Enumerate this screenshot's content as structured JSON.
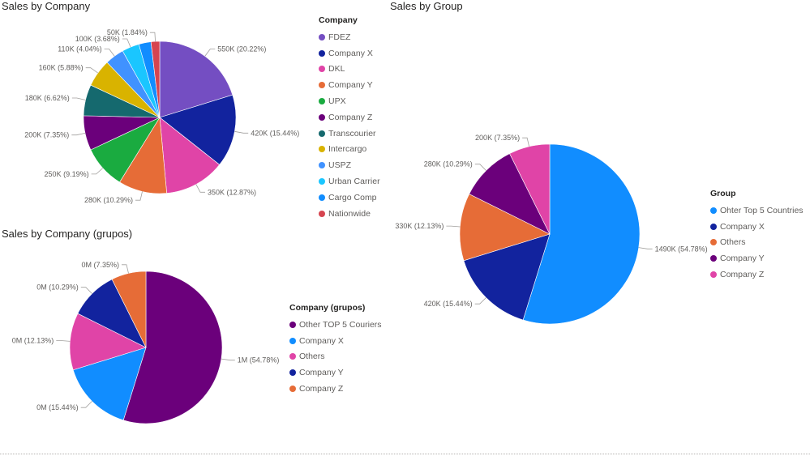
{
  "chart_data": [
    {
      "id": "company",
      "type": "pie",
      "title": "Sales by Company",
      "legend_title": "Company",
      "legend_position": "right",
      "slices": [
        {
          "name": "FDEZ",
          "label": "550K (20.22%)",
          "percent": 20.22,
          "color": "#744EC2"
        },
        {
          "name": "Company X",
          "label": "420K (15.44%)",
          "percent": 15.44,
          "color": "#12239E"
        },
        {
          "name": "DKL",
          "label": "350K (12.87%)",
          "percent": 12.87,
          "color": "#E044A7"
        },
        {
          "name": "Company Y",
          "label": "280K (10.29%)",
          "percent": 10.29,
          "color": "#E66C37"
        },
        {
          "name": "UPX",
          "label": "250K (9.19%)",
          "percent": 9.19,
          "color": "#1AAB40"
        },
        {
          "name": "Company Z",
          "label": "200K (7.35%)",
          "percent": 7.35,
          "color": "#6B007B"
        },
        {
          "name": "Transcourier",
          "label": "180K (6.62%)",
          "percent": 6.62,
          "color": "#15696E"
        },
        {
          "name": "Intercargo",
          "label": "160K (5.88%)",
          "percent": 5.88,
          "color": "#D9B300"
        },
        {
          "name": "USPZ",
          "label": "110K (4.04%)",
          "percent": 4.04,
          "color": "#4092FF"
        },
        {
          "name": "Urban Carrier",
          "label": "100K (3.68%)",
          "percent": 3.68,
          "color": "#1AC6FF"
        },
        {
          "name": "Cargo Comp",
          "label": "",
          "percent": 2.58,
          "color": "#118DFF"
        },
        {
          "name": "Nationwide",
          "label": "50K (1.84%)",
          "percent": 1.84,
          "color": "#D64550"
        }
      ]
    },
    {
      "id": "grupos",
      "type": "pie",
      "title": "Sales by Company (grupos)",
      "legend_title": "Company (grupos)",
      "legend_position": "right",
      "slices": [
        {
          "name": "Other TOP 5 Couriers",
          "label": "1M (54.78%)",
          "percent": 54.78,
          "color": "#6B007B"
        },
        {
          "name": "Company X",
          "label": "0M (15.44%)",
          "percent": 15.44,
          "color": "#118DFF"
        },
        {
          "name": "Others",
          "label": "0M (12.13%)",
          "percent": 12.13,
          "color": "#E044A7"
        },
        {
          "name": "Company Y",
          "label": "0M (10.29%)",
          "percent": 10.29,
          "color": "#12239E"
        },
        {
          "name": "Company Z",
          "label": "0M (7.35%)",
          "percent": 7.35,
          "color": "#E66C37"
        }
      ]
    },
    {
      "id": "group",
      "type": "pie",
      "title": "Sales by Group",
      "legend_title": "Group",
      "legend_position": "right",
      "slices": [
        {
          "name": "Ohter Top 5 Countries",
          "label": "1490K (54.78%)",
          "percent": 54.78,
          "color": "#118DFF"
        },
        {
          "name": "Company X",
          "label": "420K (15.44%)",
          "percent": 15.44,
          "color": "#12239E"
        },
        {
          "name": "Others",
          "label": "330K (12.13%)",
          "percent": 12.13,
          "color": "#E66C37"
        },
        {
          "name": "Company Y",
          "label": "280K (10.29%)",
          "percent": 10.29,
          "color": "#6B007B"
        },
        {
          "name": "Company Z",
          "label": "200K (7.35%)",
          "percent": 7.35,
          "color": "#E044A7"
        }
      ]
    }
  ]
}
